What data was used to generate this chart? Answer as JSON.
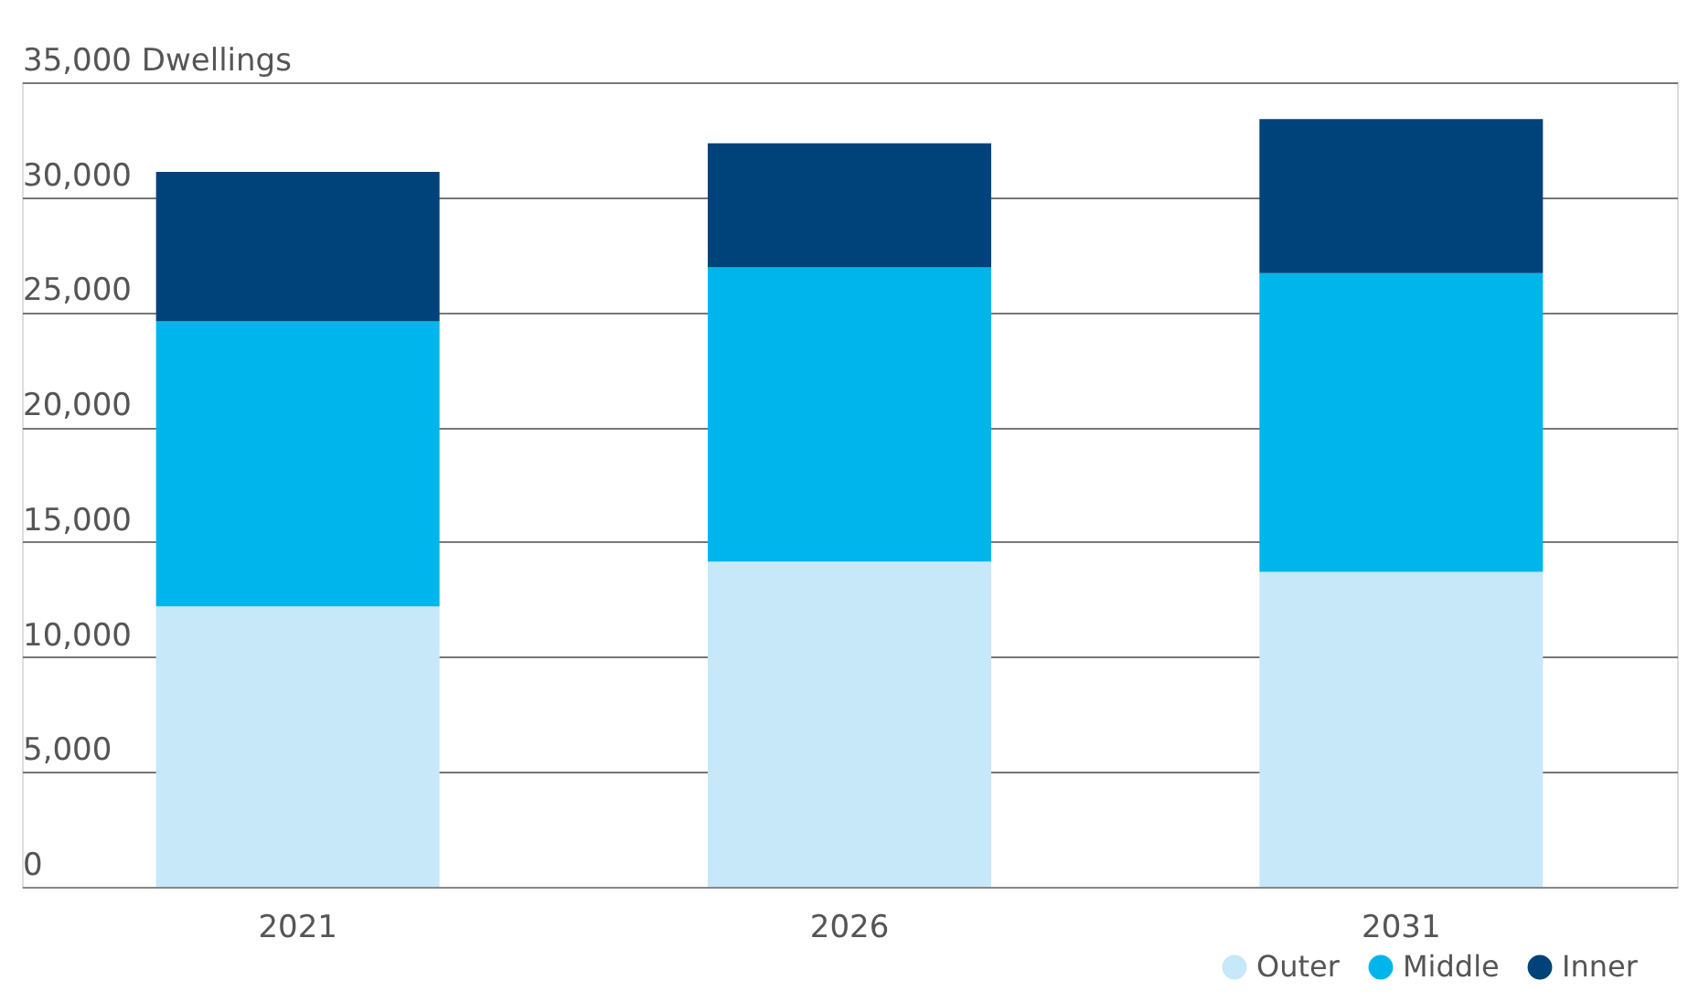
{
  "chart_data": {
    "type": "bar",
    "stacked": true,
    "categories": [
      "2021",
      "2026",
      "2031"
    ],
    "series": [
      {
        "name": "Outer",
        "color": "#c6e8f8",
        "values": [
          12200,
          14150,
          13700
        ]
      },
      {
        "name": "Middle",
        "color": "#00b5ec",
        "values": [
          12400,
          12800,
          13000
        ]
      },
      {
        "name": "Inner",
        "color": "#00427a",
        "values": [
          6500,
          5400,
          6700
        ]
      }
    ],
    "ylim": [
      0,
      35000
    ],
    "yticks": [
      0,
      {
        "value": 5000,
        "label": "5,000"
      },
      {
        "value": 10000,
        "label": "10,000"
      },
      {
        "value": 15000,
        "label": "15,000"
      },
      {
        "value": 20000,
        "label": "20,000"
      },
      {
        "value": 25000,
        "label": "25,000"
      },
      {
        "value": 30000,
        "label": "30,000"
      },
      {
        "value": 35000,
        "label": "35,000 Dwellings"
      }
    ],
    "grid": "y",
    "legend": "bottom right"
  }
}
